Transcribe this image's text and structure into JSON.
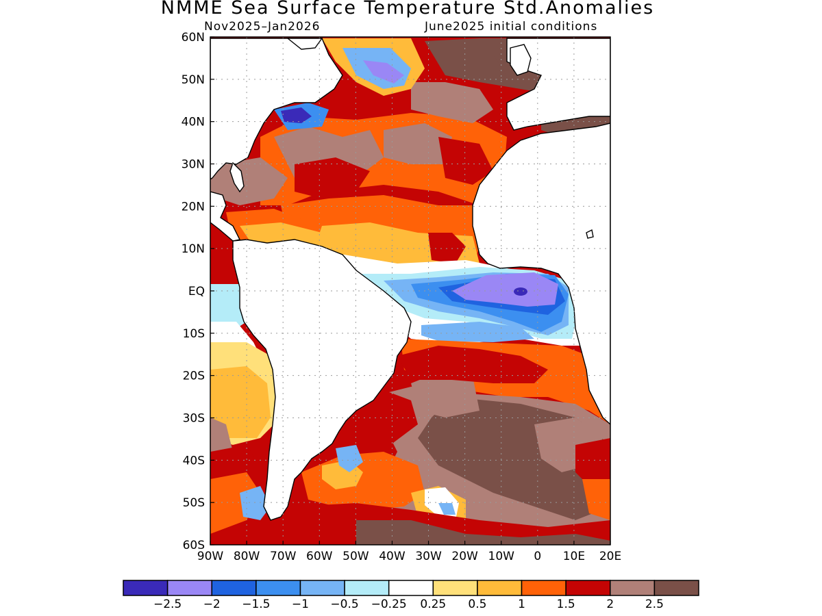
{
  "title": "NMME Sea Surface Temperature Std.Anomalies",
  "subtitle_left": "Nov2025–Jan2026",
  "subtitle_right": "June2025 initial conditions",
  "map": {
    "lon_range": [
      -90,
      20
    ],
    "lat_range": [
      -60,
      60
    ],
    "lon_ticks": [
      -90,
      -80,
      -70,
      -60,
      -50,
      -40,
      -30,
      -20,
      -10,
      0,
      10,
      20
    ],
    "lon_tick_labels": [
      "90W",
      "80W",
      "70W",
      "60W",
      "50W",
      "40W",
      "30W",
      "20W",
      "10W",
      "0",
      "10E",
      "20E"
    ],
    "lat_ticks": [
      60,
      50,
      40,
      30,
      20,
      10,
      0,
      -10,
      -20,
      -30,
      -40,
      -50,
      -60
    ],
    "lat_tick_labels": [
      "60N",
      "50N",
      "40N",
      "30N",
      "20N",
      "10N",
      "EQ",
      "10S",
      "20S",
      "30S",
      "40S",
      "50S",
      "60S"
    ],
    "grid": true
  },
  "colorbar": {
    "colors": [
      "#3a2ab8",
      "#9a87f5",
      "#1f63e0",
      "#3c8ff0",
      "#76b4f5",
      "#b4ecf8",
      "#ffffff",
      "#ffe07a",
      "#ffbb3a",
      "#ff6208",
      "#c40404",
      "#b08078",
      "#7a5048"
    ],
    "labels": [
      "−2.5",
      "−2",
      "−1.5",
      "−1",
      "−0.5",
      "−0.25",
      "0.25",
      "0.5",
      "1",
      "1.5",
      "2",
      "2.5"
    ]
  }
}
